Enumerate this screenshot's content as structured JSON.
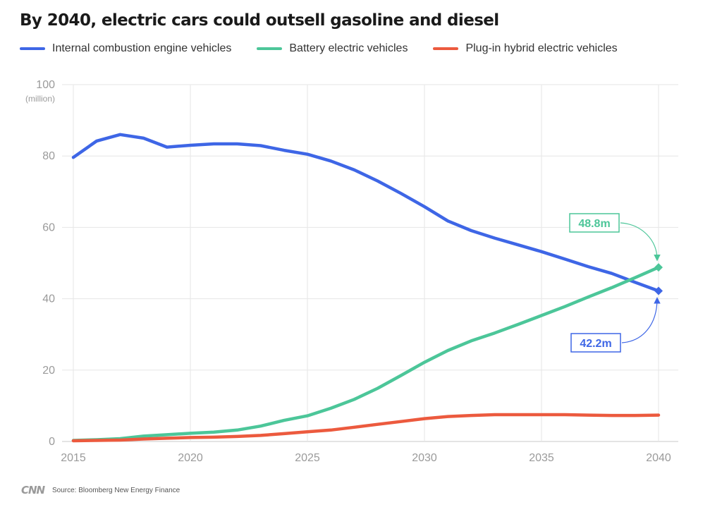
{
  "title": "By 2040, electric cars could outsell gasoline and diesel",
  "legend": [
    {
      "label": "Internal combustion engine vehicles",
      "color": "#3e66e6"
    },
    {
      "label": "Battery electric vehicles",
      "color": "#4cc699"
    },
    {
      "label": "Plug-in hybrid electric vehicles",
      "color": "#ec5a3e"
    }
  ],
  "source": "Source: Bloomberg New Energy Finance",
  "logo": "CNN",
  "chart_data": {
    "type": "line",
    "title": "By 2040, electric cars could outsell gasoline and diesel",
    "xlabel": "",
    "ylabel": "",
    "y_unit_label": "(million)",
    "xlim": [
      2015,
      2040
    ],
    "ylim": [
      0,
      100
    ],
    "x_ticks": [
      2015,
      2020,
      2025,
      2030,
      2035,
      2040
    ],
    "y_ticks": [
      0,
      20,
      40,
      60,
      80,
      100
    ],
    "grid": true,
    "legend_position": "top",
    "x": [
      2015,
      2016,
      2017,
      2018,
      2019,
      2020,
      2021,
      2022,
      2023,
      2024,
      2025,
      2026,
      2027,
      2028,
      2029,
      2030,
      2031,
      2032,
      2033,
      2034,
      2035,
      2036,
      2037,
      2038,
      2039,
      2040
    ],
    "series": [
      {
        "name": "Internal combustion engine vehicles",
        "color": "#3e66e6",
        "values": [
          79.6,
          84.2,
          86.0,
          85.0,
          82.5,
          83.0,
          83.4,
          83.4,
          82.9,
          81.6,
          80.5,
          78.6,
          76.1,
          73.0,
          69.5,
          65.8,
          61.8,
          59.1,
          57.0,
          55.1,
          53.2,
          51.1,
          49.0,
          47.1,
          44.6,
          42.2
        ],
        "annotation": {
          "label": "42.2m",
          "value": 42.2
        }
      },
      {
        "name": "Battery electric vehicles",
        "color": "#4cc699",
        "values": [
          0.3,
          0.5,
          0.8,
          1.5,
          1.9,
          2.3,
          2.6,
          3.2,
          4.3,
          5.9,
          7.2,
          9.3,
          11.8,
          14.9,
          18.5,
          22.2,
          25.5,
          28.2,
          30.4,
          32.8,
          35.3,
          37.8,
          40.5,
          43.1,
          45.9,
          48.8
        ],
        "annotation": {
          "label": "48.8m",
          "value": 48.8
        }
      },
      {
        "name": "Plug-in hybrid electric vehicles",
        "color": "#ec5a3e",
        "values": [
          0.2,
          0.3,
          0.4,
          0.7,
          0.9,
          1.1,
          1.2,
          1.4,
          1.7,
          2.2,
          2.7,
          3.2,
          4.0,
          4.8,
          5.6,
          6.4,
          7.0,
          7.3,
          7.5,
          7.5,
          7.5,
          7.5,
          7.4,
          7.3,
          7.3,
          7.4
        ]
      }
    ]
  }
}
